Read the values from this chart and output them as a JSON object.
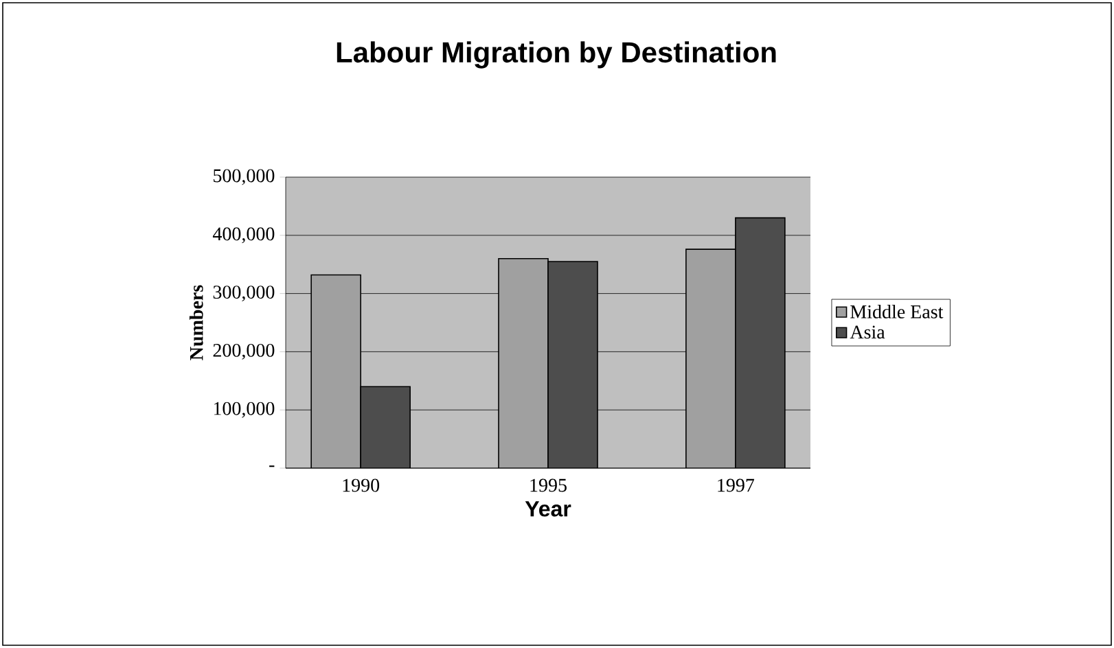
{
  "chart_data": {
    "type": "bar",
    "title": "Labour Migration by Destination",
    "xlabel": "Year",
    "ylabel": "Numbers",
    "categories": [
      "1990",
      "1995",
      "1997"
    ],
    "series": [
      {
        "name": "Middle East",
        "color": "#a0a0a0",
        "values": [
          332000,
          360000,
          376000
        ]
      },
      {
        "name": "Asia",
        "color": "#4d4d4d",
        "values": [
          140000,
          355000,
          430000
        ]
      }
    ],
    "ylim": [
      0,
      500000
    ],
    "yticks": [
      {
        "value": 0,
        "label": "-"
      },
      {
        "value": 100000,
        "label": "100,000"
      },
      {
        "value": 200000,
        "label": "200,000"
      },
      {
        "value": 300000,
        "label": "300,000"
      },
      {
        "value": 400000,
        "label": "400,000"
      },
      {
        "value": 500000,
        "label": "500,000"
      }
    ],
    "grid": "y",
    "legend": "right"
  }
}
